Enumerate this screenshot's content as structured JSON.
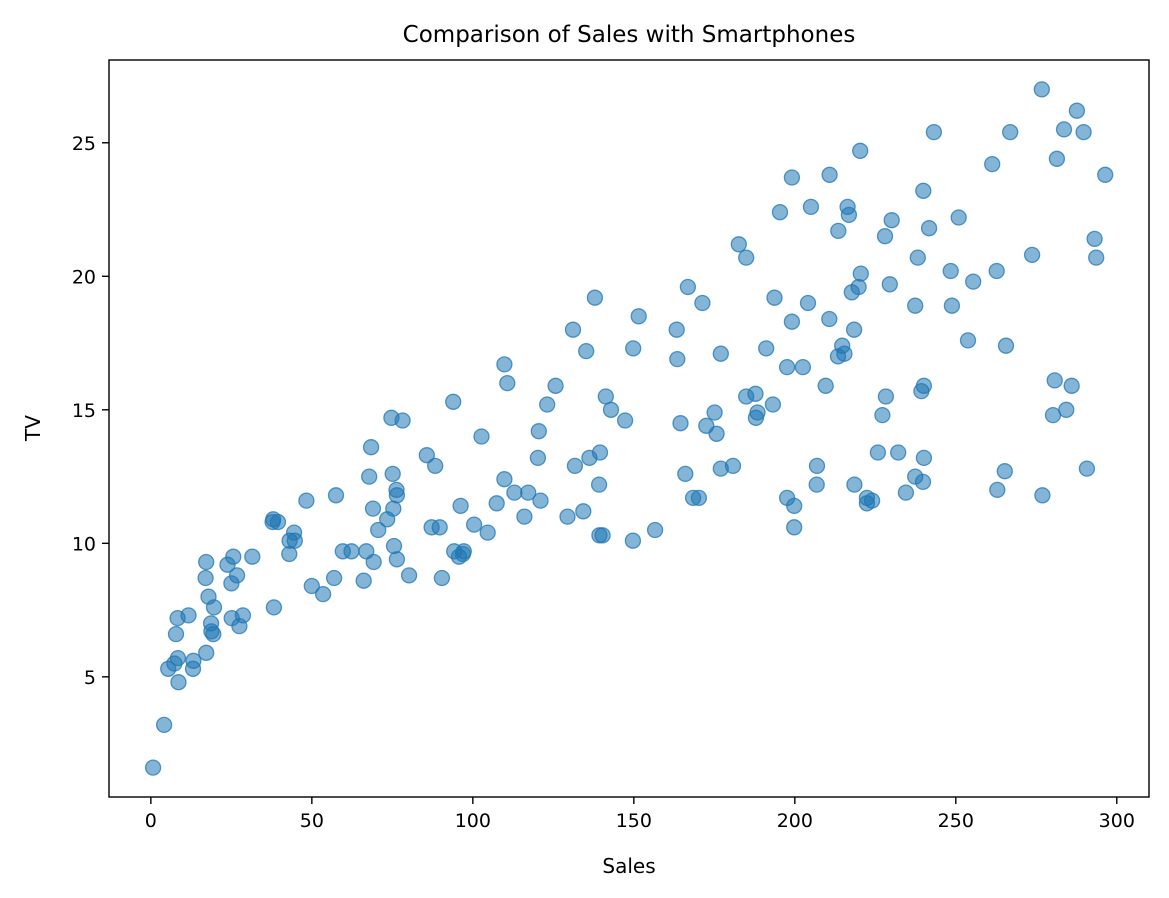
{
  "chart_data": {
    "type": "scatter",
    "title": "Comparison of Sales with Smartphones",
    "xlabel": "Sales",
    "ylabel": "TV",
    "xlim": [
      -13,
      310
    ],
    "ylim": [
      0.5,
      28.1
    ],
    "xticks": [
      0,
      50,
      100,
      150,
      200,
      250,
      300
    ],
    "yticks": [
      5,
      10,
      15,
      20,
      25
    ],
    "grid": false,
    "marker_color": "#1f77b4",
    "marker_alpha": 0.55,
    "points": [
      [
        0.7,
        1.6
      ],
      [
        4.1,
        3.2
      ],
      [
        5.4,
        5.3
      ],
      [
        7.3,
        5.5
      ],
      [
        8.4,
        5.7
      ],
      [
        8.6,
        4.8
      ],
      [
        7.8,
        6.6
      ],
      [
        8.3,
        7.2
      ],
      [
        11.7,
        7.3
      ],
      [
        13.1,
        5.3
      ],
      [
        13.2,
        5.6
      ],
      [
        17.2,
        5.9
      ],
      [
        17.0,
        8.7
      ],
      [
        17.2,
        9.3
      ],
      [
        17.9,
        8.0
      ],
      [
        18.7,
        7.0
      ],
      [
        18.8,
        6.7
      ],
      [
        19.4,
        6.6
      ],
      [
        19.6,
        7.6
      ],
      [
        23.8,
        9.2
      ],
      [
        25.0,
        8.5
      ],
      [
        25.1,
        7.2
      ],
      [
        25.6,
        9.5
      ],
      [
        26.8,
        8.8
      ],
      [
        27.5,
        6.9
      ],
      [
        28.6,
        7.3
      ],
      [
        31.5,
        9.5
      ],
      [
        37.8,
        10.8
      ],
      [
        38.2,
        7.6
      ],
      [
        38.0,
        10.9
      ],
      [
        39.5,
        10.8
      ],
      [
        43.0,
        9.6
      ],
      [
        43.1,
        10.1
      ],
      [
        44.5,
        10.4
      ],
      [
        44.7,
        10.1
      ],
      [
        48.3,
        11.6
      ],
      [
        50.0,
        8.4
      ],
      [
        53.5,
        8.1
      ],
      [
        56.9,
        8.7
      ],
      [
        57.5,
        11.8
      ],
      [
        59.6,
        9.7
      ],
      [
        62.3,
        9.7
      ],
      [
        66.1,
        8.6
      ],
      [
        66.9,
        9.7
      ],
      [
        67.8,
        12.5
      ],
      [
        68.4,
        13.6
      ],
      [
        69.0,
        11.3
      ],
      [
        69.2,
        9.3
      ],
      [
        70.6,
        10.5
      ],
      [
        73.4,
        10.9
      ],
      [
        74.7,
        14.7
      ],
      [
        75.1,
        12.6
      ],
      [
        75.3,
        11.3
      ],
      [
        75.5,
        9.9
      ],
      [
        76.3,
        12.0
      ],
      [
        76.4,
        11.8
      ],
      [
        76.4,
        9.4
      ],
      [
        78.2,
        14.6
      ],
      [
        80.2,
        8.8
      ],
      [
        85.7,
        13.3
      ],
      [
        87.2,
        10.6
      ],
      [
        88.3,
        12.9
      ],
      [
        89.7,
        10.6
      ],
      [
        90.4,
        8.7
      ],
      [
        93.9,
        15.3
      ],
      [
        94.2,
        9.7
      ],
      [
        95.7,
        9.5
      ],
      [
        96.2,
        11.4
      ],
      [
        96.9,
        9.6
      ],
      [
        97.2,
        9.7
      ],
      [
        100.4,
        10.7
      ],
      [
        102.7,
        14.0
      ],
      [
        104.6,
        10.4
      ],
      [
        107.4,
        11.5
      ],
      [
        109.8,
        12.4
      ],
      [
        109.8,
        16.7
      ],
      [
        110.7,
        16.0
      ],
      [
        112.9,
        11.9
      ],
      [
        116.0,
        11.0
      ],
      [
        117.2,
        11.9
      ],
      [
        120.2,
        13.2
      ],
      [
        120.5,
        14.2
      ],
      [
        121.0,
        11.6
      ],
      [
        123.1,
        15.2
      ],
      [
        125.7,
        15.9
      ],
      [
        129.4,
        11.0
      ],
      [
        131.1,
        18.0
      ],
      [
        131.7,
        12.9
      ],
      [
        134.3,
        11.2
      ],
      [
        135.2,
        17.2
      ],
      [
        136.2,
        13.2
      ],
      [
        137.9,
        19.2
      ],
      [
        139.2,
        12.2
      ],
      [
        139.3,
        10.3
      ],
      [
        139.5,
        13.4
      ],
      [
        140.3,
        10.3
      ],
      [
        141.3,
        15.5
      ],
      [
        142.9,
        15.0
      ],
      [
        147.3,
        14.6
      ],
      [
        149.7,
        10.1
      ],
      [
        149.8,
        17.3
      ],
      [
        151.5,
        18.5
      ],
      [
        156.6,
        10.5
      ],
      [
        163.3,
        18.0
      ],
      [
        163.5,
        16.9
      ],
      [
        164.5,
        14.5
      ],
      [
        166.0,
        12.6
      ],
      [
        166.8,
        19.6
      ],
      [
        168.4,
        11.7
      ],
      [
        170.2,
        11.7
      ],
      [
        171.3,
        19.0
      ],
      [
        172.5,
        14.4
      ],
      [
        175.1,
        14.9
      ],
      [
        175.7,
        14.1
      ],
      [
        177.0,
        12.8
      ],
      [
        177.0,
        17.1
      ],
      [
        180.8,
        12.9
      ],
      [
        182.6,
        21.2
      ],
      [
        184.9,
        20.7
      ],
      [
        184.9,
        15.5
      ],
      [
        187.8,
        15.6
      ],
      [
        187.9,
        14.7
      ],
      [
        188.4,
        14.9
      ],
      [
        191.1,
        17.3
      ],
      [
        193.2,
        15.2
      ],
      [
        193.7,
        19.2
      ],
      [
        195.4,
        22.4
      ],
      [
        197.6,
        16.6
      ],
      [
        197.6,
        11.7
      ],
      [
        199.1,
        23.7
      ],
      [
        199.1,
        18.3
      ],
      [
        199.8,
        11.4
      ],
      [
        199.8,
        10.6
      ],
      [
        202.5,
        16.6
      ],
      [
        204.1,
        19.0
      ],
      [
        205.0,
        22.6
      ],
      [
        206.8,
        12.2
      ],
      [
        206.9,
        12.9
      ],
      [
        209.6,
        15.9
      ],
      [
        210.7,
        18.4
      ],
      [
        210.8,
        23.8
      ],
      [
        213.4,
        17.0
      ],
      [
        213.5,
        21.7
      ],
      [
        214.7,
        17.4
      ],
      [
        215.4,
        17.1
      ],
      [
        216.4,
        22.6
      ],
      [
        216.8,
        22.3
      ],
      [
        217.7,
        19.4
      ],
      [
        218.4,
        18.0
      ],
      [
        218.5,
        12.2
      ],
      [
        219.8,
        19.6
      ],
      [
        220.3,
        24.7
      ],
      [
        220.5,
        20.1
      ],
      [
        222.4,
        11.7
      ],
      [
        222.4,
        11.5
      ],
      [
        224.0,
        11.6
      ],
      [
        225.8,
        13.4
      ],
      [
        227.2,
        14.8
      ],
      [
        228.0,
        21.5
      ],
      [
        228.3,
        15.5
      ],
      [
        229.5,
        19.7
      ],
      [
        230.1,
        22.1
      ],
      [
        232.1,
        13.4
      ],
      [
        234.5,
        11.9
      ],
      [
        237.4,
        12.5
      ],
      [
        237.4,
        18.9
      ],
      [
        238.2,
        20.7
      ],
      [
        239.3,
        15.7
      ],
      [
        239.8,
        12.3
      ],
      [
        239.9,
        23.2
      ],
      [
        240.1,
        15.9
      ],
      [
        240.1,
        13.2
      ],
      [
        241.7,
        21.8
      ],
      [
        243.2,
        25.4
      ],
      [
        248.4,
        20.2
      ],
      [
        248.8,
        18.9
      ],
      [
        250.9,
        22.2
      ],
      [
        253.8,
        17.6
      ],
      [
        255.4,
        19.8
      ],
      [
        261.3,
        24.2
      ],
      [
        262.7,
        20.2
      ],
      [
        262.9,
        12.0
      ],
      [
        265.2,
        12.7
      ],
      [
        265.6,
        17.4
      ],
      [
        266.9,
        25.4
      ],
      [
        273.7,
        20.8
      ],
      [
        276.7,
        27.0
      ],
      [
        276.9,
        11.8
      ],
      [
        280.2,
        14.8
      ],
      [
        280.7,
        16.1
      ],
      [
        281.4,
        24.4
      ],
      [
        283.6,
        25.5
      ],
      [
        284.3,
        15.0
      ],
      [
        286.0,
        15.9
      ],
      [
        287.6,
        26.2
      ],
      [
        289.7,
        25.4
      ],
      [
        290.7,
        12.8
      ],
      [
        293.1,
        21.4
      ],
      [
        293.6,
        20.7
      ],
      [
        296.4,
        23.8
      ]
    ]
  }
}
